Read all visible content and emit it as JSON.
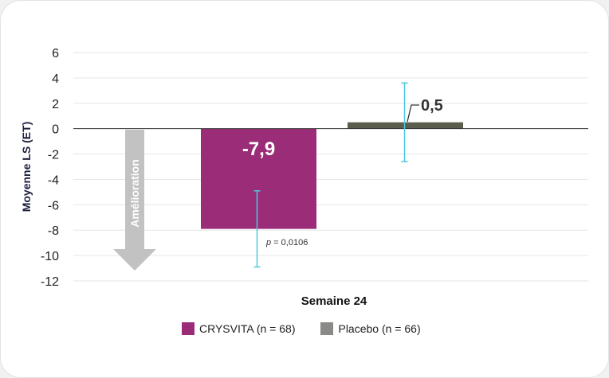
{
  "chart_data": {
    "type": "bar",
    "ylabel": "Moyenne LS (ET)",
    "xlabel": "Semaine 24",
    "ylim": [
      -12,
      6
    ],
    "yticks": [
      6,
      4,
      2,
      0,
      -2,
      -4,
      -6,
      -8,
      -10,
      -12
    ],
    "grid": true,
    "legend_position": "bottom",
    "series": [
      {
        "name": "CRYSVITA (n = 68)",
        "value": -7.9,
        "label": "-7,9",
        "err_low": -10.9,
        "err_high": -4.9,
        "color": "#9b2c78",
        "error_color": "#4dc8dc"
      },
      {
        "name": "Placebo (n = 66)",
        "value": 0.5,
        "label": "0,5",
        "err_low": -2.6,
        "err_high": 3.6,
        "color": "#5b5d4d",
        "legend_color": "#8a8b86",
        "error_color": "#4dc8dc"
      }
    ],
    "annotations": {
      "p_value": "p = 0,0106",
      "arrow_label": "Amélioration",
      "arrow_color": "#c2c2c2"
    }
  }
}
